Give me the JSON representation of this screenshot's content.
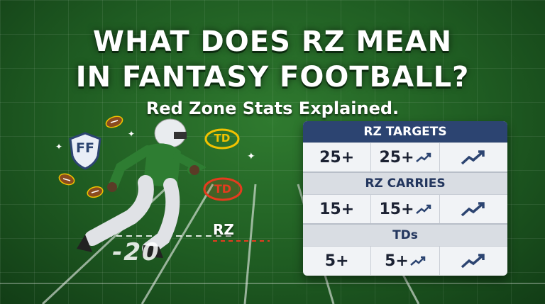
{
  "title": {
    "line1": "WHAT DOES RZ MEAN",
    "line2": "IN FANTASY FOOTBALL?"
  },
  "subtitle": "Red Zone Stats Explained.",
  "badges": {
    "ff": "FF",
    "td_gold": "TD",
    "td_red": "TD"
  },
  "field": {
    "rz_label": "RZ",
    "yard_marker": "-20"
  },
  "stats": {
    "sections": [
      {
        "header": "RZ TARGETS",
        "cells": [
          "25+",
          "25+"
        ]
      },
      {
        "header": "RZ CARRIES",
        "cells": [
          "15+",
          "15+"
        ]
      },
      {
        "header": "TDs",
        "cells": [
          "5+",
          "5+"
        ]
      }
    ]
  },
  "colors": {
    "field_green": "#1f5c22",
    "card_header": "#2c4471",
    "jersey": "#2e7d32",
    "td_gold": "#f2c200",
    "td_red": "#e53b1e"
  }
}
